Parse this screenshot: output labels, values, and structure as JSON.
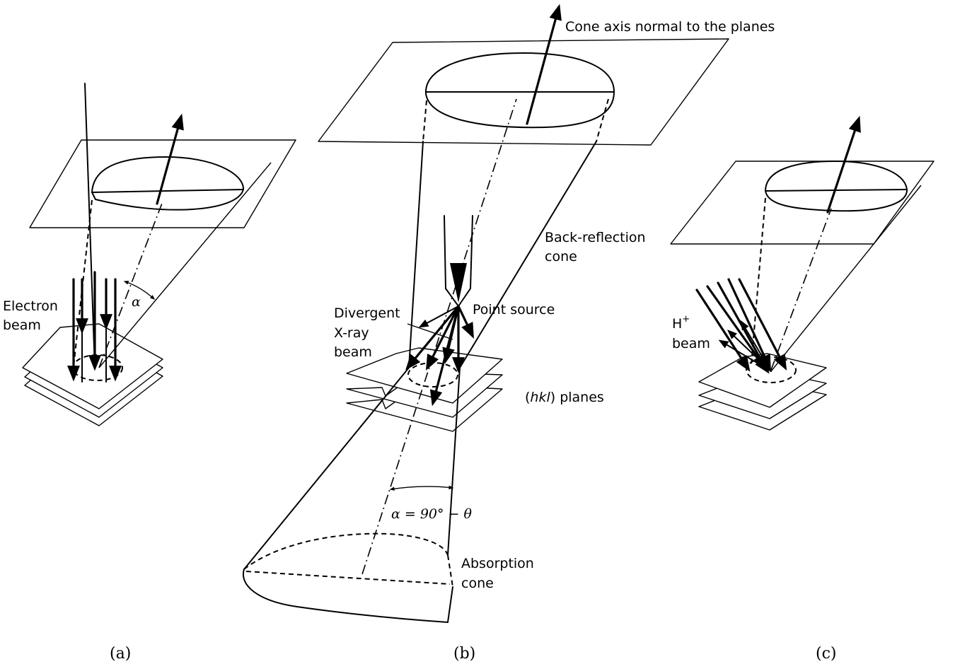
{
  "labels": {
    "a_electron_beam_1": "Electron",
    "a_electron_beam_2": "beam",
    "a_alpha": "α",
    "b_cone_axis": "Cone axis normal to the planes",
    "b_back_reflection_1": "Back-reflection",
    "b_back_reflection_2": "cone",
    "b_point_source": "Point source",
    "b_divergent_1": "Divergent",
    "b_divergent_2": "X-ray",
    "b_divergent_3": "beam",
    "b_hkl_open": "(",
    "b_hkl_italic": "hkl",
    "b_hkl_rest": ") planes",
    "b_alpha_formula": "α = 90° − θ",
    "b_absorption_1": "Absorption",
    "b_absorption_2": "cone",
    "c_h_beam_1": "H",
    "c_h_beam_plus": "+",
    "c_h_beam_2": "beam"
  },
  "captions": {
    "a": "(a)",
    "b": "(b)",
    "c": "(c)"
  }
}
